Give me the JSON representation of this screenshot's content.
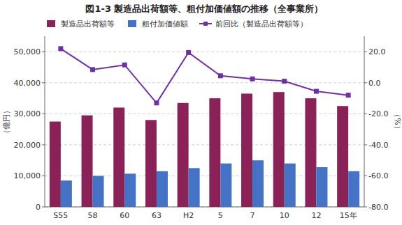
{
  "chart_data": {
    "type": "bar",
    "title": "図1-3  製造品出荷額等、粗付加価値額の推移（全事業所）",
    "categories": [
      "S55",
      "58",
      "60",
      "63",
      "H2",
      "5",
      "7",
      "10",
      "12",
      "15年"
    ],
    "series": [
      {
        "name": "製造品出荷額等",
        "type": "bar",
        "color": "#8B2257",
        "values": [
          27500,
          29500,
          32000,
          28000,
          33500,
          35000,
          36500,
          37000,
          35000,
          32500
        ]
      },
      {
        "name": "粗付加価値額",
        "type": "bar",
        "color": "#4472C4",
        "values": [
          8500,
          10000,
          10700,
          11500,
          12500,
          14000,
          15000,
          14000,
          12800,
          11500
        ]
      },
      {
        "name": "前回比（製造品出荷額等）",
        "type": "line",
        "axis": "y2",
        "color": "#7030A0",
        "marker": "square",
        "values": [
          22.0,
          8.5,
          11.5,
          -13.0,
          19.5,
          4.5,
          2.5,
          1.0,
          -5.5,
          -8.0
        ]
      }
    ],
    "ylabel": "（億円）",
    "y2label": "（%）",
    "ylim": [
      0,
      55000
    ],
    "yticks": [
      0,
      {
        "value": 10000,
        "label": "10,000"
      },
      {
        "value": 20000,
        "label": "20,000"
      },
      {
        "value": 30000,
        "label": "30,000"
      },
      {
        "value": 40000,
        "label": "40,000"
      },
      {
        "value": 50000,
        "label": "50,000"
      }
    ],
    "y2lim": [
      -80,
      30
    ],
    "y2ticks": [
      {
        "value": -80,
        "label": "-80.0"
      },
      {
        "value": -60,
        "label": "-60.0"
      },
      {
        "value": -40,
        "label": "-40.0"
      },
      {
        "value": -20,
        "label": "-20.0"
      },
      {
        "value": 0,
        "label": "0.0"
      },
      {
        "value": 20,
        "label": "20.0"
      }
    ],
    "grid": true,
    "legend": "top"
  }
}
